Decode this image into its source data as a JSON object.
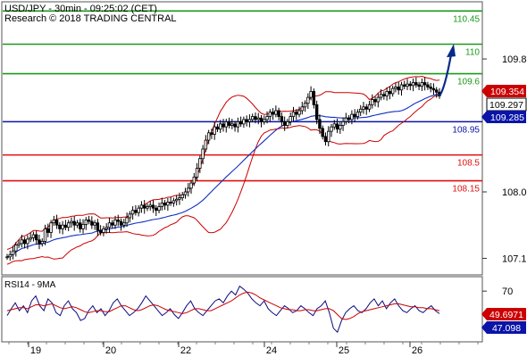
{
  "header": {
    "line1": "USD/JPY - 30min - 09:25:02 (CET)",
    "line2": "Research © 2018 TRADING CENTRAL"
  },
  "rsi_panel": {
    "title": "RSI14 - 9MA"
  },
  "colors": {
    "resistance": "#1a9a1a",
    "pivot": "#0a14a8",
    "support": "#e01010",
    "candles": "#000000",
    "bollinger": "#cc0000",
    "moving_average": "#1030c0",
    "arrow": "#0a2a8a",
    "last_price_bg": "#000000",
    "pivot_bg": "#0a14a8",
    "upper_band_bg": "#cc0000",
    "rsi_line": "#0a0a80",
    "rsi_ma_line": "#cc0000",
    "rsi_ma_bg": "#cc0000",
    "rsi_bg": "#0a14a8"
  },
  "chart_data": [
    {
      "type": "candlestick",
      "title": "USD/JPY - 30min",
      "x_tick_labels": [
        "19",
        "20",
        "22",
        "24",
        "25",
        "26"
      ],
      "y_tick_labels": [
        "110.45",
        "110",
        "109.8",
        "109.6",
        "109.354",
        "109.297",
        "109.285",
        "108.95",
        "108.5",
        "108.15",
        "108.0",
        "107.1"
      ],
      "ylim": [
        106.9,
        110.55
      ],
      "y_ticks": [
        109.8,
        108.0,
        107.1
      ],
      "levels": [
        {
          "label": "110.45",
          "value": 110.45,
          "kind": "resistance"
        },
        {
          "label": "110",
          "value": 110.0,
          "kind": "resistance"
        },
        {
          "label": "109.6",
          "value": 109.6,
          "kind": "resistance"
        },
        {
          "label": "108.95",
          "value": 108.95,
          "kind": "pivot"
        },
        {
          "label": "108.5",
          "value": 108.5,
          "kind": "support"
        },
        {
          "label": "108.15",
          "value": 108.15,
          "kind": "support"
        }
      ],
      "price_tags": [
        {
          "label": "109.354",
          "value": 109.354,
          "kind": "upper_band"
        },
        {
          "label": "109.297",
          "value": 109.297,
          "kind": "last_price"
        },
        {
          "label": "109.285",
          "value": 109.285,
          "kind": "moving_average"
        }
      ],
      "close_series": [
        107.12,
        107.15,
        107.2,
        107.28,
        107.3,
        107.35,
        107.3,
        107.36,
        107.38,
        107.42,
        107.35,
        107.3,
        107.33,
        107.5,
        107.45,
        107.58,
        107.62,
        107.55,
        107.5,
        107.55,
        107.52,
        107.58,
        107.6,
        107.55,
        107.58,
        107.5,
        107.56,
        107.62,
        107.6,
        107.55,
        107.58,
        107.48,
        107.45,
        107.5,
        107.52,
        107.58,
        107.55,
        107.62,
        107.6,
        107.55,
        107.58,
        107.65,
        107.7,
        107.75,
        107.72,
        107.78,
        107.82,
        107.78,
        107.8,
        107.82,
        107.78,
        107.75,
        107.8,
        107.85,
        107.82,
        107.86,
        107.85,
        107.88,
        107.9,
        107.92,
        107.96,
        108.0,
        108.05,
        108.12,
        108.2,
        108.32,
        108.45,
        108.58,
        108.7,
        108.8,
        108.78,
        108.88,
        108.85,
        108.92,
        108.88,
        108.95,
        108.9,
        108.92,
        108.88,
        108.95,
        108.92,
        108.98,
        108.95,
        108.98,
        109.02,
        108.98,
        109.0,
        108.95,
        108.98,
        109.02,
        109.08,
        109.05,
        109.1,
        109.02,
        108.95,
        108.9,
        108.95,
        109.02,
        109.08,
        109.05,
        109.1,
        109.15,
        109.2,
        109.28,
        109.36,
        109.18,
        108.98,
        108.86,
        108.75,
        108.68,
        108.82,
        108.88,
        108.92,
        108.85,
        108.9,
        108.95,
        109.0,
        108.98,
        109.05,
        109.02,
        109.08,
        109.12,
        109.15,
        109.12,
        109.18,
        109.25,
        109.22,
        109.28,
        109.32,
        109.3,
        109.36,
        109.33,
        109.4,
        109.42,
        109.38,
        109.45,
        109.43,
        109.46,
        109.44,
        109.48,
        109.45,
        109.43,
        109.48,
        109.45,
        109.42,
        109.4,
        109.38,
        109.35,
        109.3
      ],
      "projection": {
        "from": 109.3,
        "to": 109.98
      }
    },
    {
      "type": "line",
      "title": "RSI14 - 9MA",
      "ylim": [
        20,
        82
      ],
      "y_tick_labels": [
        "70",
        "49.6971",
        "47.098"
      ],
      "y_ticks": [
        70
      ],
      "series": [
        {
          "name": "RSI14",
          "last_value": 47.098,
          "values": [
            45,
            52,
            58,
            50,
            55,
            48,
            60,
            65,
            55,
            50,
            62,
            58,
            48,
            45,
            55,
            60,
            52,
            48,
            40,
            42,
            50,
            55,
            48,
            52,
            45,
            50,
            58,
            62,
            55,
            50,
            45,
            48,
            52,
            58,
            65,
            60,
            55,
            50,
            45,
            48,
            52,
            46,
            42,
            48,
            55,
            60,
            52,
            48,
            45,
            50,
            55,
            60,
            62,
            58,
            65,
            70,
            66,
            75,
            72,
            68,
            62,
            58,
            55,
            60,
            52,
            48,
            45,
            50,
            55,
            52,
            48,
            50,
            55,
            52,
            48,
            45,
            52,
            55,
            60,
            48,
            32,
            28,
            40,
            48,
            52,
            55,
            50,
            48,
            52,
            58,
            62,
            55,
            60,
            52,
            58,
            62,
            55,
            50,
            48,
            52,
            55,
            50,
            48,
            52,
            55,
            50,
            47
          ]
        },
        {
          "name": "9MA",
          "last_value": 49.6971,
          "values": [
            50,
            51,
            52,
            53,
            53,
            52,
            54,
            56,
            56,
            55,
            56,
            57,
            55,
            53,
            52,
            53,
            54,
            53,
            51,
            49,
            48,
            49,
            50,
            50,
            49,
            49,
            51,
            53,
            55,
            55,
            53,
            51,
            50,
            51,
            53,
            55,
            56,
            55,
            53,
            51,
            50,
            49,
            48,
            47,
            48,
            50,
            52,
            52,
            51,
            50,
            50,
            52,
            54,
            56,
            58,
            60,
            63,
            66,
            68,
            69,
            68,
            66,
            63,
            61,
            59,
            57,
            55,
            53,
            52,
            51,
            51,
            50,
            50,
            51,
            51,
            50,
            50,
            51,
            52,
            52,
            50,
            46,
            42,
            41,
            42,
            44,
            47,
            49,
            50,
            51,
            52,
            53,
            54,
            55,
            56,
            57,
            57,
            56,
            55,
            54,
            54,
            53,
            53,
            52,
            52,
            51,
            50
          ]
        }
      ]
    }
  ]
}
